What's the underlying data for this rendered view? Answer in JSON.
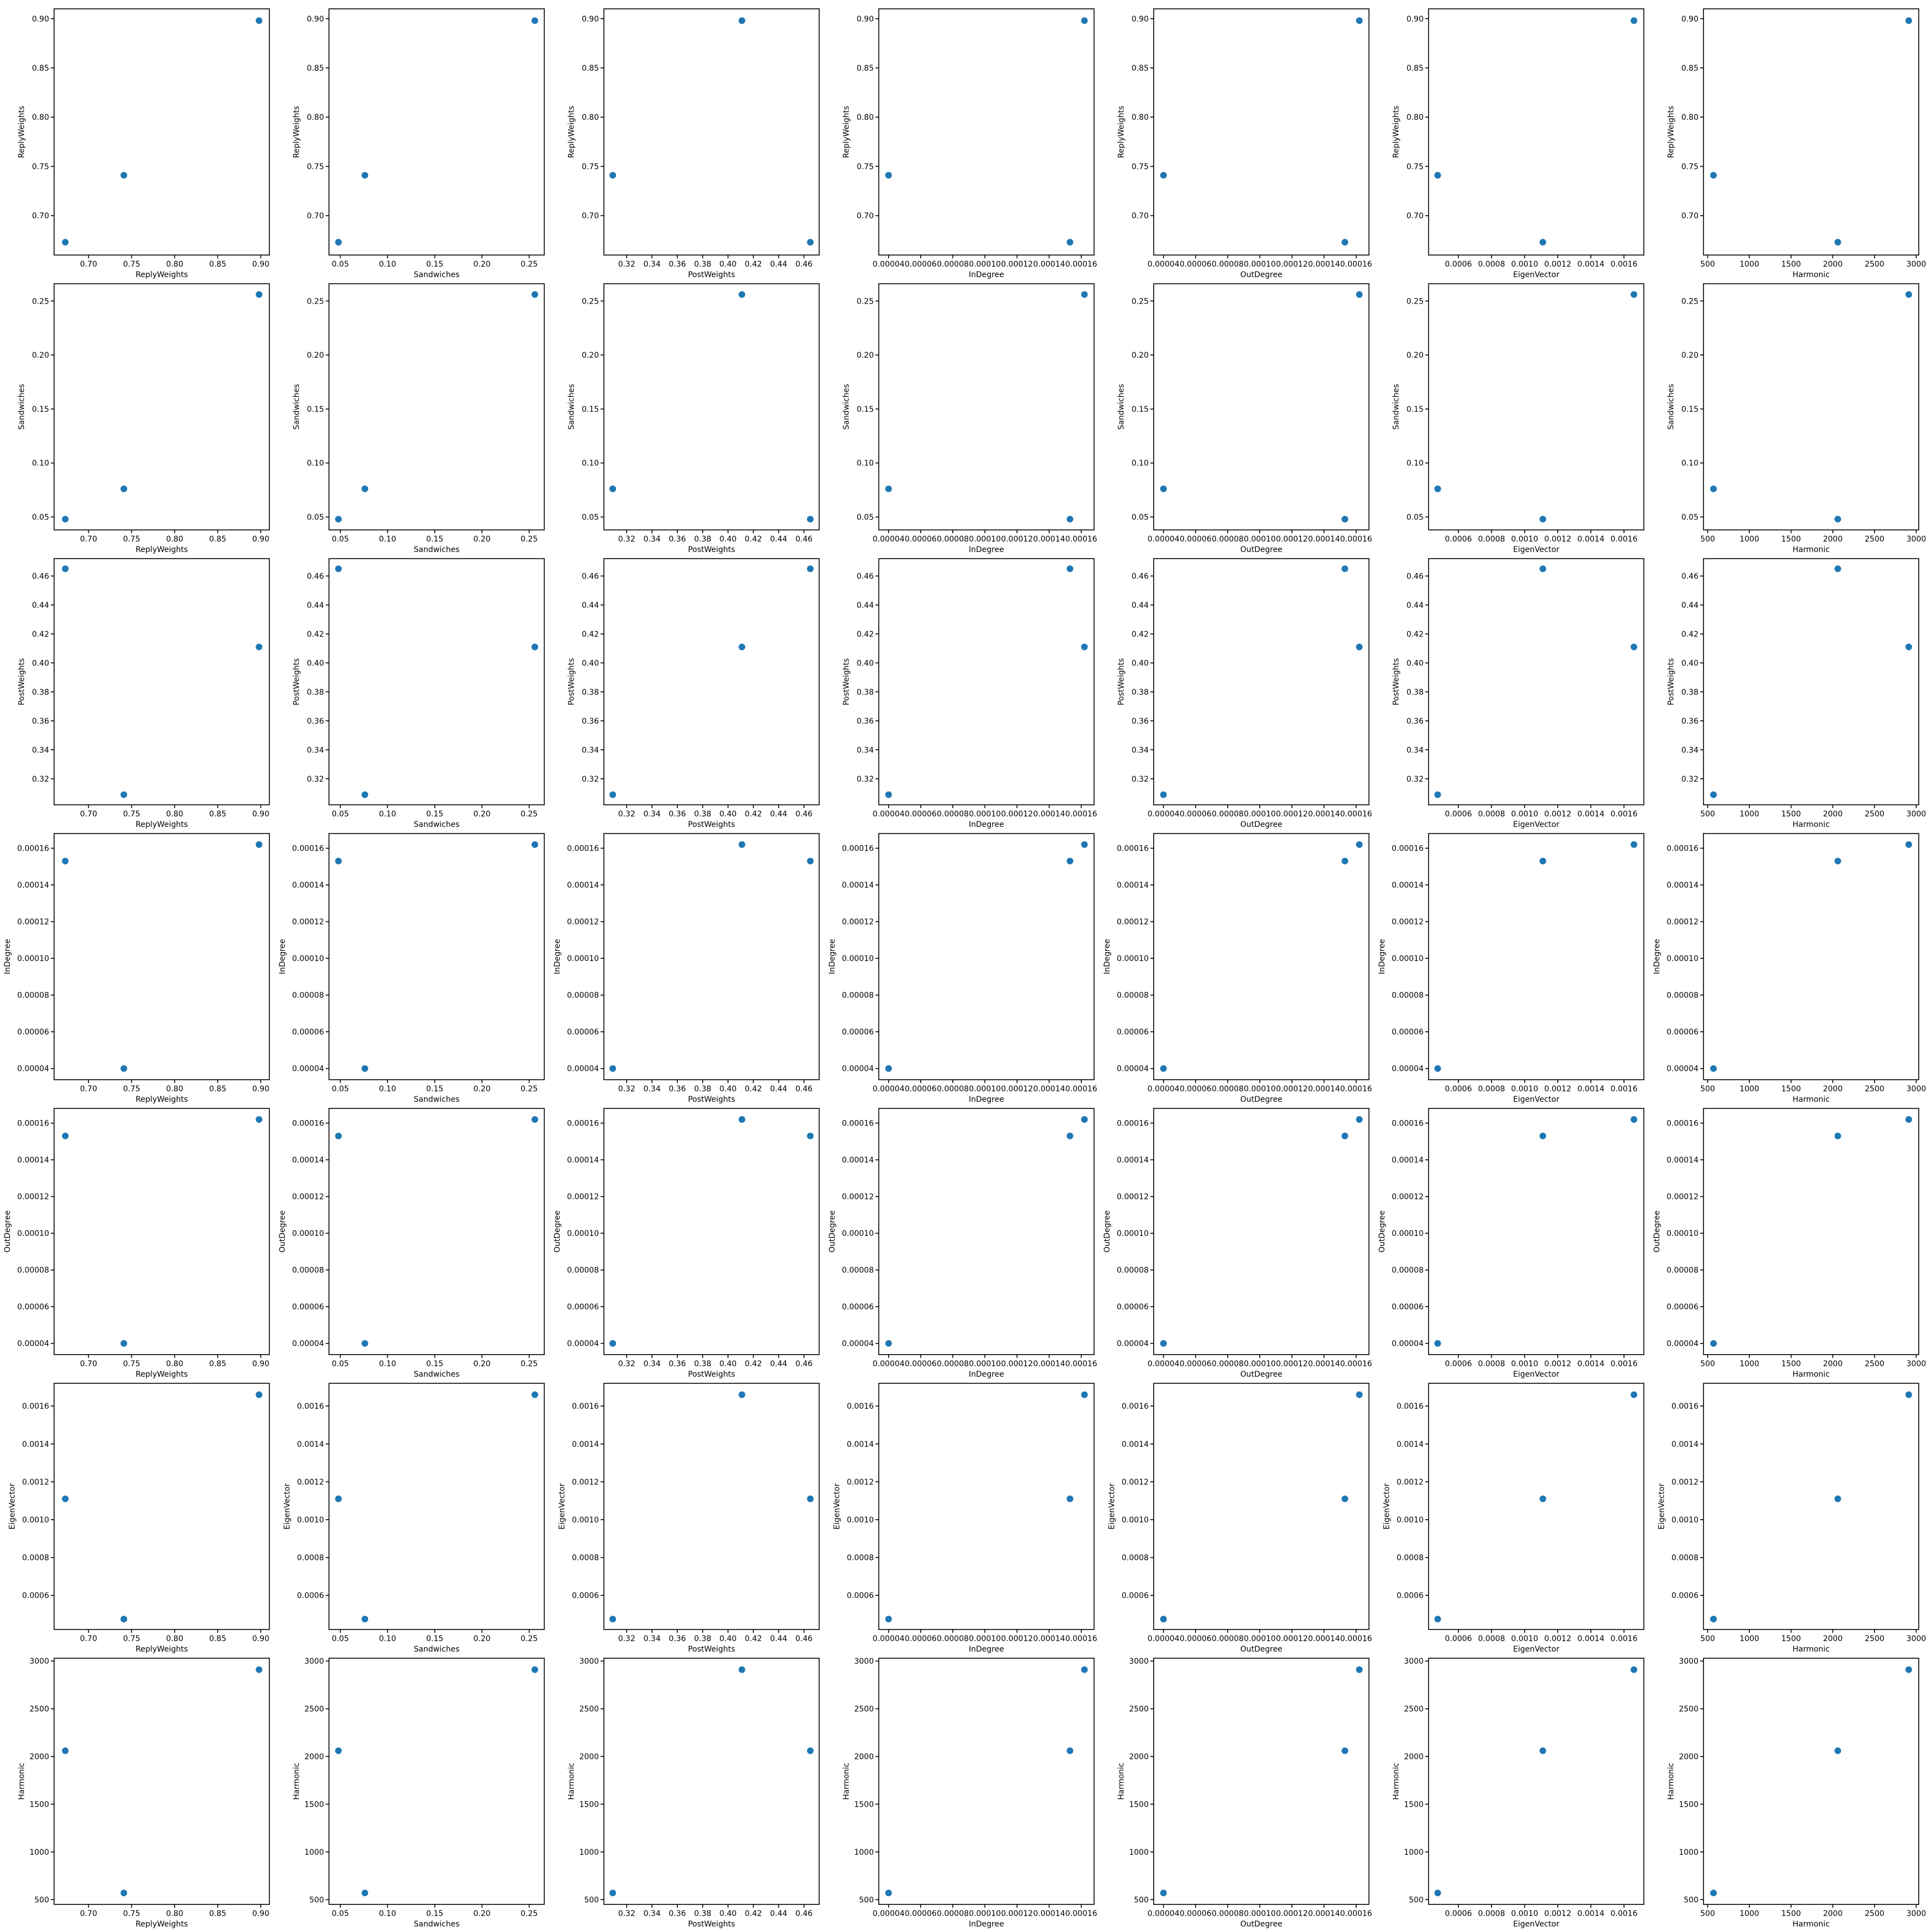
{
  "chart_data": {
    "type": "scatter",
    "layout": "pair-grid",
    "color": "#1f77b4",
    "grid": false,
    "variables": [
      {
        "name": "ReplyWeights",
        "values": [
          0.673,
          0.741,
          0.898
        ],
        "range": [
          0.66,
          0.91
        ],
        "ticks": [
          0.7,
          0.75,
          0.8,
          0.85,
          0.9
        ],
        "tick_labels": [
          "0.70",
          "0.75",
          "0.80",
          "0.85",
          "0.90"
        ]
      },
      {
        "name": "Sandwiches",
        "values": [
          0.048,
          0.076,
          0.256
        ],
        "range": [
          0.038,
          0.266
        ],
        "ticks": [
          0.05,
          0.1,
          0.15,
          0.2,
          0.25
        ],
        "tick_labels": [
          "0.05",
          "0.10",
          "0.15",
          "0.20",
          "0.25"
        ]
      },
      {
        "name": "PostWeights",
        "values": [
          0.465,
          0.309,
          0.411
        ],
        "range": [
          0.302,
          0.472
        ],
        "ticks": [
          0.32,
          0.34,
          0.36,
          0.38,
          0.4,
          0.42,
          0.44,
          0.46
        ],
        "tick_labels": [
          "0.32",
          "0.34",
          "0.36",
          "0.38",
          "0.40",
          "0.42",
          "0.44",
          "0.46"
        ]
      },
      {
        "name": "InDegree",
        "values": [
          0.000153,
          4e-05,
          0.000162
        ],
        "range": [
          3.39e-05,
          0.000168
        ],
        "ticks": [
          4e-05,
          6e-05,
          8e-05,
          0.0001,
          0.00012,
          0.00014,
          0.00016
        ],
        "tick_labels": [
          "0.00004",
          "0.00006",
          "0.00008",
          "0.00010",
          "0.00012",
          "0.00014",
          "0.00016"
        ]
      },
      {
        "name": "OutDegree",
        "values": [
          0.000153,
          4e-05,
          0.000162
        ],
        "range": [
          3.39e-05,
          0.000168
        ],
        "ticks": [
          4e-05,
          6e-05,
          8e-05,
          0.0001,
          0.00012,
          0.00014,
          0.00016
        ],
        "tick_labels": [
          "0.00004",
          "0.00006",
          "0.00008",
          "0.00010",
          "0.00012",
          "0.00014",
          "0.00016"
        ]
      },
      {
        "name": "EigenVector",
        "values": [
          0.00111,
          0.000475,
          0.00166
        ],
        "range": [
          0.00042,
          0.00172
        ],
        "ticks": [
          0.0006,
          0.0008,
          0.001,
          0.0012,
          0.0014,
          0.0016
        ],
        "tick_labels": [
          "0.0006",
          "0.0008",
          "0.0010",
          "0.0012",
          "0.0014",
          "0.0016"
        ]
      },
      {
        "name": "Harmonic",
        "values": [
          2060,
          570,
          2910
        ],
        "range": [
          450,
          3030
        ],
        "ticks": [
          500,
          1000,
          1500,
          2000,
          2500,
          3000
        ],
        "tick_labels": [
          "500",
          "1000",
          "1500",
          "2000",
          "2500",
          "3000"
        ]
      }
    ]
  }
}
